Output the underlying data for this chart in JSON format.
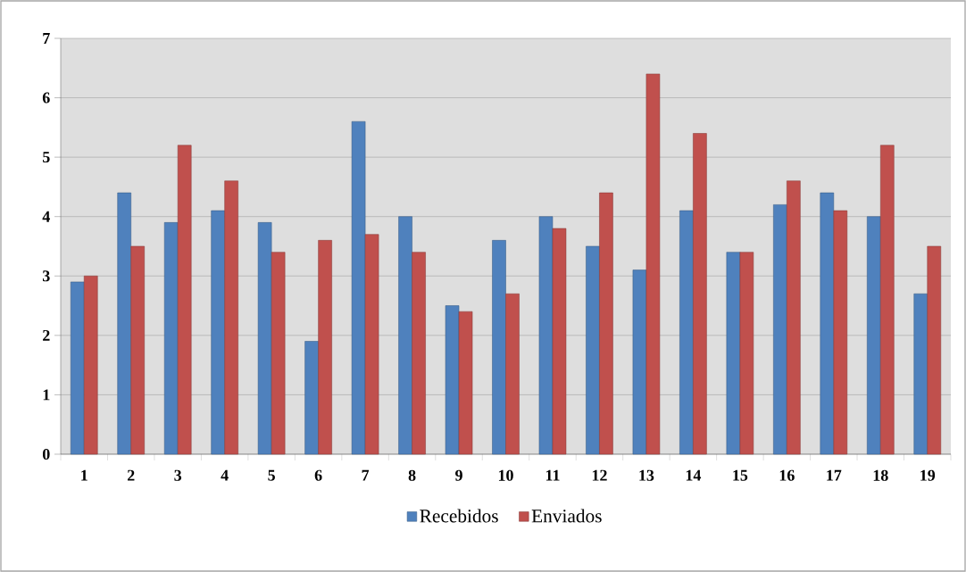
{
  "chart_data": {
    "type": "bar",
    "categories": [
      "1",
      "2",
      "3",
      "4",
      "5",
      "6",
      "7",
      "8",
      "9",
      "10",
      "11",
      "12",
      "13",
      "14",
      "15",
      "16",
      "17",
      "18",
      "19"
    ],
    "series": [
      {
        "name": "Recebidos",
        "color": "#4f81bd",
        "values": [
          2.9,
          4.4,
          3.9,
          4.1,
          3.9,
          1.9,
          5.6,
          4.0,
          2.5,
          3.6,
          4.0,
          3.5,
          3.1,
          4.1,
          3.4,
          4.2,
          4.4,
          4.0,
          2.7
        ]
      },
      {
        "name": "Enviados",
        "color": "#c0504d",
        "values": [
          3.0,
          3.5,
          5.2,
          4.6,
          3.4,
          3.6,
          3.7,
          3.4,
          2.4,
          2.7,
          3.8,
          4.4,
          6.4,
          5.4,
          3.4,
          4.6,
          4.1,
          5.2,
          3.5
        ]
      }
    ],
    "ylim": [
      0,
      7
    ],
    "yticks": [
      0,
      1,
      2,
      3,
      4,
      5,
      6,
      7
    ],
    "grid": "y",
    "legend": "bottom"
  }
}
